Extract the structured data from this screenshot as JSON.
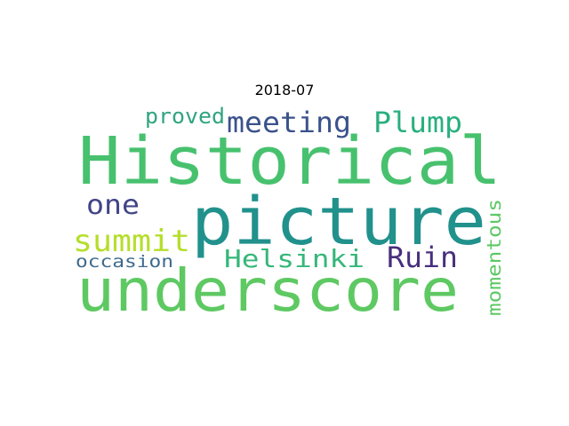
{
  "title": "2018-07",
  "words": [
    {
      "text": "Historical",
      "color": "#47c16e"
    },
    {
      "text": "picture",
      "color": "#21918c"
    },
    {
      "text": "underscore",
      "color": "#5ec962"
    },
    {
      "text": "meeting",
      "color": "#3b528b"
    },
    {
      "text": "Plump",
      "color": "#29af7f"
    },
    {
      "text": "proved",
      "color": "#31a47f"
    },
    {
      "text": "summit",
      "color": "#b5de2b"
    },
    {
      "text": "Helsinki",
      "color": "#35b779"
    },
    {
      "text": "Ruin",
      "color": "#472f7d"
    },
    {
      "text": "one",
      "color": "#414487"
    },
    {
      "text": "occasion",
      "color": "#3e6a8c"
    },
    {
      "text": "momentous",
      "color": "#5cc863"
    }
  ]
}
